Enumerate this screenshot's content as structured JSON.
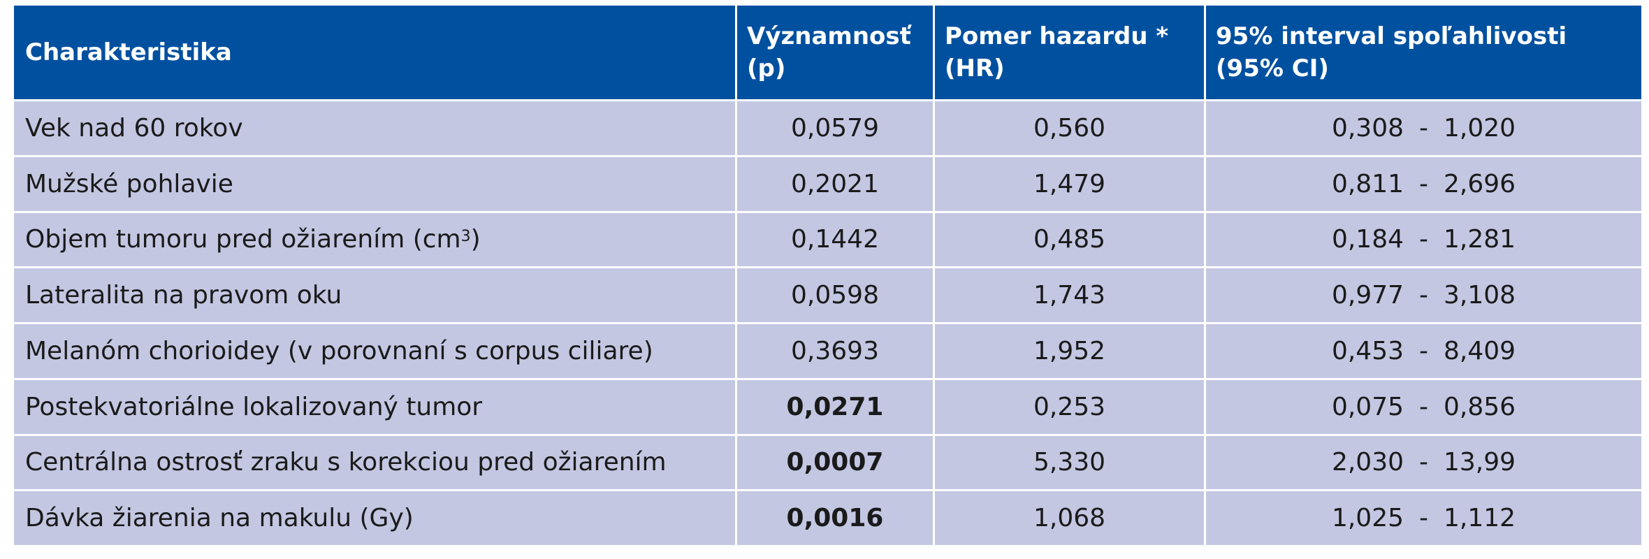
{
  "table": {
    "headers": [
      "Charakteristika",
      "Významnosť\n(p)",
      "Pomer hazardu *\n(HR)",
      "95% interval spoľahlivosti\n(95% CI)"
    ],
    "rows": [
      {
        "label": "Vek nad 60 rokov",
        "label_sup": "",
        "label_after": "",
        "p": "0,0579",
        "p_bold": false,
        "hr": "0,560",
        "ci_low": "0,308",
        "ci_sep": "-",
        "ci_high": "1,020"
      },
      {
        "label": "Mužské pohlavie",
        "label_sup": "",
        "label_after": "",
        "p": "0,2021",
        "p_bold": false,
        "hr": "1,479",
        "ci_low": "0,811",
        "ci_sep": "-",
        "ci_high": "2,696"
      },
      {
        "label": "Objem tumoru pred ožiarením (cm",
        "label_sup": "3",
        "label_after": ")",
        "p": "0,1442",
        "p_bold": false,
        "hr": "0,485",
        "ci_low": "0,184",
        "ci_sep": "-",
        "ci_high": "1,281"
      },
      {
        "label": "Lateralita na pravom oku",
        "label_sup": "",
        "label_after": "",
        "p": "0,0598",
        "p_bold": false,
        "hr": "1,743",
        "ci_low": "0,977",
        "ci_sep": "-",
        "ci_high": "3,108"
      },
      {
        "label": "Melanóm chorioidey (v porovnaní s corpus ciliare)",
        "label_sup": "",
        "label_after": "",
        "p": "0,3693",
        "p_bold": false,
        "hr": "1,952",
        "ci_low": "0,453",
        "ci_sep": "-",
        "ci_high": "8,409"
      },
      {
        "label": "Postekvatoriálne lokalizovaný tumor",
        "label_sup": "",
        "label_after": "",
        "p": "0,0271",
        "p_bold": true,
        "hr": "0,253",
        "ci_low": "0,075",
        "ci_sep": "-",
        "ci_high": "0,856"
      },
      {
        "label": "Centrálna ostrosť zraku s korekciou pred ožiarením",
        "label_sup": "",
        "label_after": "",
        "p": "0,0007",
        "p_bold": true,
        "hr": "5,330",
        "ci_low": "2,030",
        "ci_sep": "-",
        "ci_high": "13,99"
      },
      {
        "label": "Dávka žiarenia na makulu (Gy)",
        "label_sup": "",
        "label_after": "",
        "p": "0,0016",
        "p_bold": true,
        "hr": "1,068",
        "ci_low": "1,025",
        "ci_sep": "-",
        "ci_high": "1,112"
      }
    ]
  },
  "colors": {
    "header_bg": "#0050a0",
    "header_text": "#ffffff",
    "row_bg": "#c3c7e2",
    "cell_text": "#1a1a1a"
  }
}
